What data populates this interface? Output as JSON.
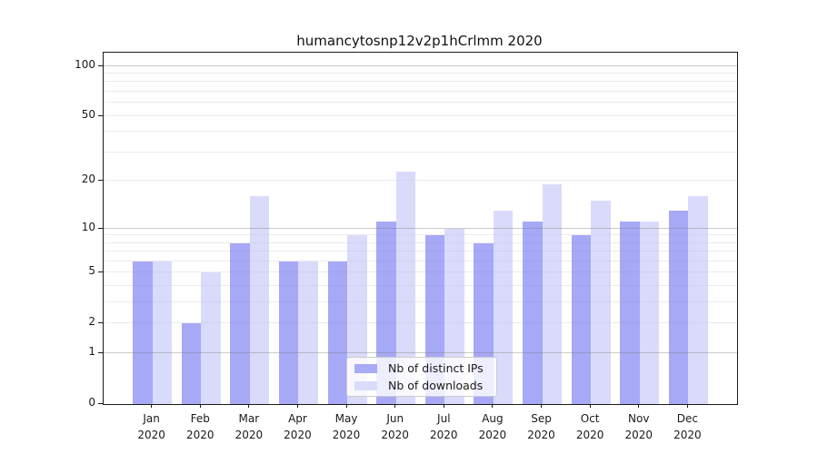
{
  "chart_data": {
    "type": "bar",
    "title": "humancytosnp12v2p1hCrlmm 2020",
    "categories": [
      "Jan",
      "Feb",
      "Mar",
      "Apr",
      "May",
      "Jun",
      "Jul",
      "Aug",
      "Sep",
      "Oct",
      "Nov",
      "Dec"
    ],
    "year": "2020",
    "series": [
      {
        "name": "Nb of distinct IPs",
        "values": [
          6,
          2,
          8,
          6,
          6,
          11,
          9,
          8,
          11,
          9,
          11,
          13
        ],
        "fill": "rgba(121,125,243,0.66)",
        "swatch": "#a8abf7"
      },
      {
        "name": "Nb of downloads",
        "values": [
          6,
          5,
          16,
          6,
          9,
          23,
          10,
          13,
          19,
          15,
          11,
          16
        ],
        "fill": "rgba(187,190,246,0.55)",
        "swatch": "#dadcfa"
      }
    ],
    "yscale": "log1p",
    "ylim": [
      0,
      120
    ],
    "yticks": [
      0,
      1,
      2,
      5,
      10,
      20,
      50,
      100
    ],
    "grid_minor": [
      2,
      3,
      4,
      5,
      6,
      7,
      8,
      9,
      20,
      30,
      40,
      50,
      60,
      70,
      80,
      90
    ],
    "grid_major": [
      1,
      10,
      100
    ],
    "legend_position": "lower-center-inside",
    "colors": {
      "minor_grid": "#ebebeb",
      "major_grid": "rgba(125,125,125,0.40)",
      "axis": "#1a1a1a"
    }
  }
}
